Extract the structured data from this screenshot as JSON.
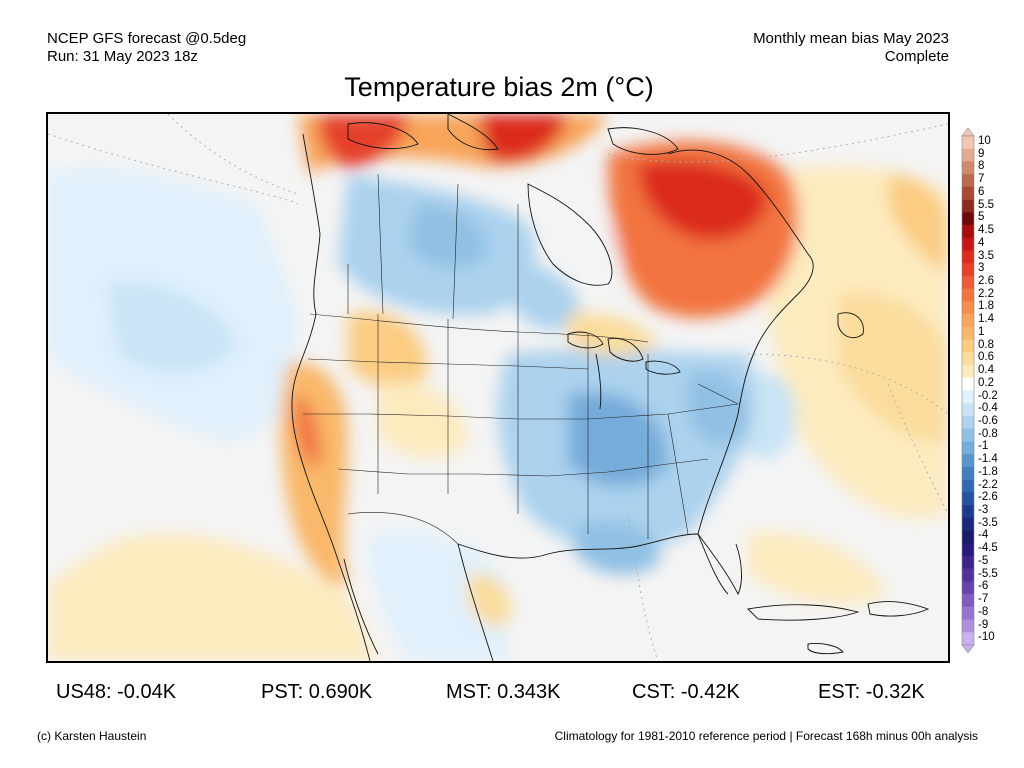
{
  "header": {
    "model_line": "NCEP GFS forecast @0.5deg",
    "run_line": "Run: 31 May 2023 18z",
    "period_line": "Monthly mean bias May 2023",
    "status_line": "Complete"
  },
  "title": "Temperature bias 2m (°C)",
  "legend": {
    "labels": [
      "10",
      "9",
      "8",
      "7",
      "6",
      "5.5",
      "5",
      "4.5",
      "4",
      "3.5",
      "3",
      "2.6",
      "2.2",
      "1.8",
      "1.4",
      "1",
      "0.8",
      "0.6",
      "0.4",
      "0.2",
      "-0.2",
      "-0.4",
      "-0.6",
      "-0.8",
      "-1",
      "-1.4",
      "-1.8",
      "-2.2",
      "-2.6",
      "-3",
      "-3.5",
      "-4",
      "-4.5",
      "-5",
      "-5.5",
      "-6",
      "-7",
      "-8",
      "-9",
      "-10"
    ],
    "colors": [
      "#f2c8b4",
      "#e3aa90",
      "#cf8a6c",
      "#ba6a4e",
      "#a64a32",
      "#8c2a1c",
      "#6e0a0a",
      "#a80c0c",
      "#c81616",
      "#dc2a1c",
      "#e6402a",
      "#ee5a36",
      "#f27440",
      "#f68e4e",
      "#f8a45a",
      "#f9b86a",
      "#fbcc82",
      "#fbdc9c",
      "#fdebc0",
      "#ffffff",
      "#e0f0fc",
      "#c8e4f6",
      "#acd2ee",
      "#90c0e4",
      "#74acda",
      "#5a96ce",
      "#4280c0",
      "#3068b0",
      "#24529e",
      "#1c3c8c",
      "#18287a",
      "#181a6a",
      "#281a78",
      "#3c2488",
      "#50329a",
      "#6644ac",
      "#7c5cbe",
      "#9474ce",
      "#ac90dc",
      "#c8b0ec"
    ]
  },
  "stats": {
    "us48": "US48: -0.04K",
    "pst": "PST: 0.690K",
    "mst": "MST: 0.343K",
    "cst": "CST: -0.42K",
    "est": "EST: -0.32K"
  },
  "footer": {
    "credit": "(c) Karsten Haustein",
    "note": "Climatology for 1981-2010 reference period | Forecast 168h minus 00h analysis"
  }
}
